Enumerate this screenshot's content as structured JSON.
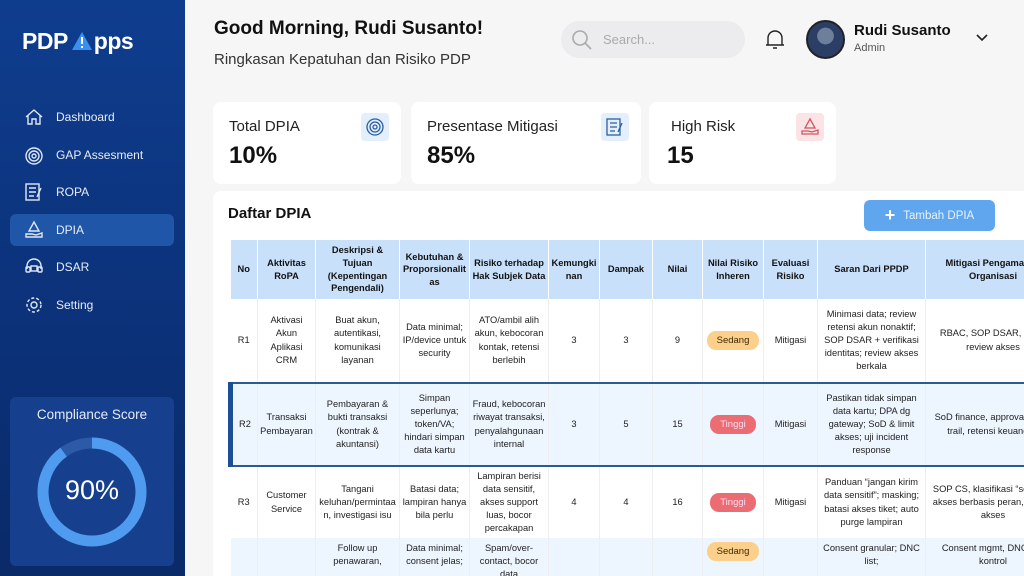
{
  "app": {
    "logo_text": "PDP Apps",
    "logo_prefix": "PDP",
    "logo_suffix": "pps"
  },
  "sidebar": {
    "items": [
      {
        "label": "Dashboard",
        "icon": "home-icon"
      },
      {
        "label": "GAP Assesment",
        "icon": "target-icon"
      },
      {
        "label": "ROPA",
        "icon": "checklist-icon"
      },
      {
        "label": "DPIA",
        "icon": "warning-hand-icon",
        "active": true
      },
      {
        "label": "DSAR",
        "icon": "headset-icon"
      },
      {
        "label": "Setting",
        "icon": "gear-icon"
      }
    ]
  },
  "compliance": {
    "title": "Compliance Score",
    "value": "90%",
    "percent": 90,
    "color": "#4f9bf0"
  },
  "header": {
    "greeting": "Good Morning, Rudi Susanto!",
    "subtitle": "Ringkasan Kepatuhan dan Risiko PDP",
    "search_placeholder": "Search...",
    "user_name": "Rudi Susanto",
    "user_role": "Admin"
  },
  "cards": [
    {
      "label": "Total DPIA",
      "value": "10%"
    },
    {
      "label": "Presentase Mitigasi",
      "value": "85%"
    },
    {
      "label": "High Risk",
      "value": "15"
    }
  ],
  "table": {
    "title": "Daftar DPIA",
    "add_label": "Tambah DPIA",
    "columns": [
      "No",
      "Aktivitas RoPA",
      "Deskripsi & Tujuan (Kepentingan Pengendali)",
      "Kebutuhan & Proporsionalitas",
      "Risiko terhadap Hak Subjek Data",
      "Kemungkinan",
      "Dampak",
      "Nilai",
      "Nilai Risiko Inheren",
      "Evaluasi Risiko",
      "Saran Dari PPDP",
      "Mitigasi Pengamanan Organisasi"
    ],
    "rows": [
      [
        "R1",
        "Aktivasi Akun Aplikasi CRM",
        "Buat akun, autentikasi, komunikasi layanan",
        "Data minimal; IP/device untuk security",
        "ATO/ambil alih akun, kebocoran kontak, retensi berlebih",
        "3",
        "3",
        "9",
        "Sedang",
        "Mitigasi",
        "Minimasi data; review retensi akun nonaktif; SOP DSAR + verifikasi identitas; review akses berkala",
        "RBAC, SOP DSAR, NDA, review akses"
      ],
      [
        "R2",
        "Transaksi Pembayaran",
        "Pembayaran & bukti transaksi (kontrak & akuntansi)",
        "Simpan seperlunya; token/VA; hindari simpan data kartu",
        "Fraud, kebocoran riwayat transaksi, penyalahgunaan internal",
        "3",
        "5",
        "15",
        "Tinggi",
        "Mitigasi",
        "Pastikan tidak simpan data kartu; DPA dg gateway; SoD & limit akses; uji incident response",
        "SoD finance, approval, audit trail, retensi keuangan"
      ],
      [
        "R3",
        "Customer Service",
        "Tangani keluhan/permintaan, investigasi isu",
        "Batasi data; lampiran hanya bila perlu",
        "Lampiran berisi data sensitif, akses support luas, bocor percakapan",
        "4",
        "4",
        "16",
        "Tinggi",
        "Mitigasi",
        "Panduan “jangan kirim data sensitif”; masking; batasi akses tiket; auto purge lampiran",
        "SOP CS, klasifikasi “sensitif”, akses berbasis peran, review akses"
      ],
      [
        "",
        "",
        "Follow up penawaran,",
        "Data minimal; consent jelas;",
        "Spam/over-contact, bocor data",
        "",
        "",
        "",
        "Sedang",
        "",
        "Consent granular; DNC list;",
        "Consent mgmt, DNC list, kontrol"
      ]
    ]
  },
  "colors": {
    "sidebar": "#0f3d8e",
    "accent": "#5fa6ef",
    "sedang": "#fcd08a",
    "tinggi": "#ec6c74",
    "header_row": "#c9e0fb"
  }
}
